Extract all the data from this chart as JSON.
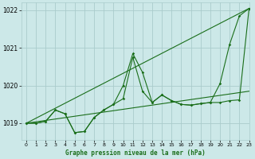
{
  "background_color": "#cce8e8",
  "grid_color": "#aacccc",
  "line_color": "#1a6e1a",
  "title": "Graphe pression niveau de la mer (hPa)",
  "xlim": [
    -0.5,
    23
  ],
  "ylim": [
    1018.55,
    1022.2
  ],
  "yticks": [
    1019,
    1020,
    1021,
    1022
  ],
  "xticks": [
    0,
    1,
    2,
    3,
    4,
    5,
    6,
    7,
    8,
    9,
    10,
    11,
    12,
    13,
    14,
    15,
    16,
    17,
    18,
    19,
    20,
    21,
    22,
    23
  ],
  "trend1_x": [
    0,
    23
  ],
  "trend1_y": [
    1019.0,
    1022.05
  ],
  "trend2_x": [
    0,
    23
  ],
  "trend2_y": [
    1019.0,
    1019.85
  ],
  "series1_x": [
    0,
    1,
    2,
    3,
    4,
    5,
    6,
    7,
    8,
    9,
    10,
    11,
    12,
    13,
    14,
    15,
    16,
    17,
    18,
    19,
    20,
    21,
    22,
    23
  ],
  "series1_y": [
    1019.0,
    1019.0,
    1019.05,
    1019.35,
    1019.25,
    1018.75,
    1018.78,
    1019.15,
    1019.35,
    1019.5,
    1019.65,
    1020.75,
    1019.85,
    1019.55,
    1019.75,
    1019.6,
    1019.5,
    1019.48,
    1019.52,
    1019.55,
    1019.55,
    1019.6,
    1019.62,
    1022.05
  ],
  "series2_x": [
    0,
    1,
    2,
    3,
    4,
    5,
    6,
    7,
    8,
    9,
    10,
    11,
    12,
    13,
    14,
    15,
    16,
    17,
    18,
    19,
    20,
    21,
    22,
    23
  ],
  "series2_y": [
    1019.0,
    1019.0,
    1019.05,
    1019.35,
    1019.25,
    1018.75,
    1018.78,
    1019.15,
    1019.35,
    1019.5,
    1020.0,
    1020.85,
    1020.35,
    1019.55,
    1019.75,
    1019.6,
    1019.5,
    1019.48,
    1019.52,
    1019.55,
    1020.05,
    1021.1,
    1021.85,
    1022.05
  ]
}
